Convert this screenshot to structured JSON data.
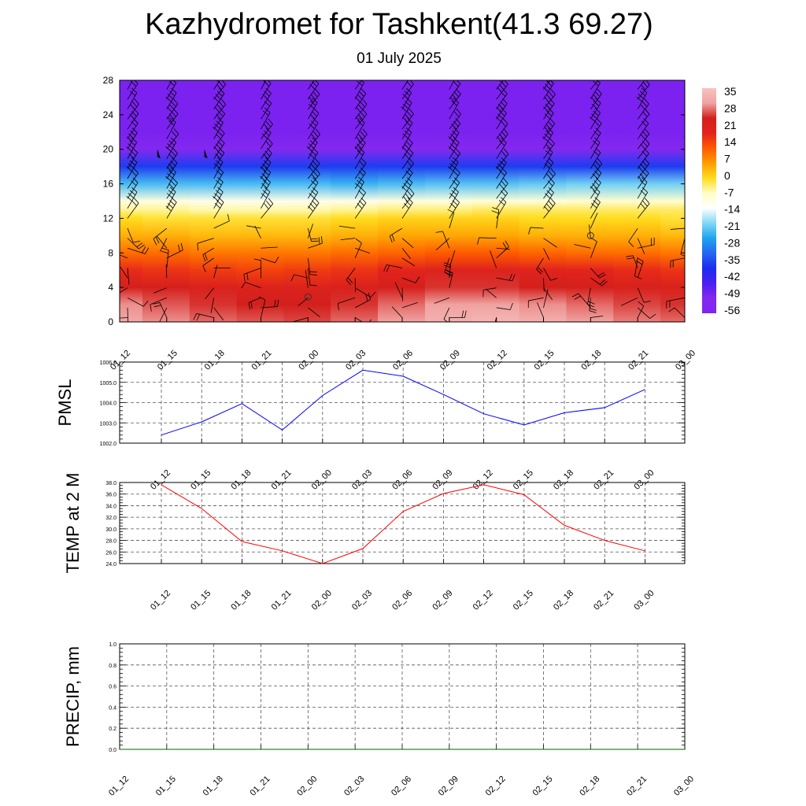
{
  "page": {
    "title": "Kazhydromet for Tashkent(41.3 69.27)",
    "subtitle": "01 July 2025"
  },
  "chart_data": [
    {
      "type": "heatmap",
      "ylim": [
        0,
        28
      ],
      "yticks": [
        0,
        4,
        8,
        12,
        16,
        20,
        24,
        28
      ],
      "categories": [
        "01_12",
        "01_15",
        "01_18",
        "01_21",
        "02_00",
        "02_03",
        "02_06",
        "02_09",
        "02_12",
        "02_15",
        "02_18",
        "02_21",
        "03_00"
      ],
      "colorbar": {
        "labels": [
          "35",
          "28",
          "21",
          "14",
          "7",
          "0",
          "-7",
          "-14",
          "-21",
          "-28",
          "-35",
          "-42",
          "-49",
          "-56"
        ],
        "colors": [
          "#f7b5b3",
          "#e3231d",
          "#ff5a00",
          "#ff9d00",
          "#ffdc1e",
          "#fffdc6",
          "#ffffff",
          "#7fd8f5",
          "#1fa3ef",
          "#2366f0",
          "#1c2cf0",
          "#4b1ff0",
          "#8328ef"
        ]
      },
      "profile_levels": [
        0,
        2,
        4,
        6,
        8,
        10,
        12,
        13,
        14,
        16,
        18,
        20,
        21,
        22,
        24,
        26,
        28
      ],
      "temperature": [
        [
          36,
          34,
          28,
          20,
          12,
          5,
          0,
          -5,
          -10,
          -25,
          -40,
          -56,
          -63,
          -70,
          -70,
          -70,
          -70
        ],
        [
          34,
          31,
          27,
          19,
          12,
          5,
          -1,
          -5,
          -10,
          -25,
          -40,
          -56,
          -63,
          -70,
          -70,
          -70,
          -70
        ],
        [
          32,
          29,
          25,
          18,
          11,
          4,
          -1,
          -6,
          -11,
          -25,
          -40,
          -56,
          -63,
          -70,
          -70,
          -70,
          -70
        ],
        [
          31,
          28,
          24,
          17,
          11,
          4,
          -1,
          -6,
          -11,
          -25,
          -40,
          -56,
          -63,
          -70,
          -70,
          -70,
          -70
        ],
        [
          30,
          28,
          24,
          18,
          11,
          4,
          -1,
          -6,
          -11,
          -25,
          -40,
          -56,
          -63,
          -70,
          -70,
          -70,
          -70
        ],
        [
          32,
          29,
          25,
          19,
          12,
          5,
          0,
          -5,
          -11,
          -26,
          -40,
          -56,
          -63,
          -70,
          -70,
          -70,
          -70
        ],
        [
          35,
          32,
          27,
          21,
          13,
          6,
          1,
          -4,
          -10,
          -25,
          -40,
          -56,
          -63,
          -70,
          -70,
          -70,
          -70
        ],
        [
          37,
          35,
          29,
          23,
          14,
          6,
          1,
          -4,
          -10,
          -24,
          -40,
          -56,
          -63,
          -70,
          -70,
          -70,
          -70
        ],
        [
          38,
          35,
          29,
          23,
          14,
          6,
          1,
          -3,
          -9,
          -24,
          -40,
          -56,
          -63,
          -70,
          -70,
          -70,
          -70
        ],
        [
          37,
          34,
          28,
          22,
          13,
          5,
          0,
          -3,
          -9,
          -23,
          -40,
          -56,
          -63,
          -70,
          -70,
          -70,
          -70
        ],
        [
          35,
          32,
          27,
          21,
          12,
          5,
          0,
          -3,
          -8,
          -22,
          -40,
          -56,
          -63,
          -70,
          -70,
          -70,
          -70
        ],
        [
          33,
          30,
          26,
          20,
          12,
          5,
          0,
          -3,
          -8,
          -22,
          -40,
          -56,
          -63,
          -70,
          -70,
          -70,
          -70
        ],
        [
          32,
          29,
          25,
          19,
          11,
          4,
          -1,
          -3,
          -8,
          -22,
          -40,
          -56,
          -63,
          -70,
          -70,
          -70,
          -70
        ]
      ]
    },
    {
      "type": "line",
      "ylabel": "PMSL",
      "ylim": [
        1002.0,
        1006.0
      ],
      "yticks": [
        "1002.0",
        "1003.0",
        "1004.0",
        "1005.0",
        "1006.0"
      ],
      "categories": [
        "01_12",
        "01_15",
        "01_18",
        "01_21",
        "02_00",
        "02_03",
        "02_06",
        "02_09",
        "02_12",
        "02_15",
        "02_18",
        "02_21",
        "03_00"
      ],
      "values": [
        1002.4,
        1003.05,
        1003.95,
        1002.65,
        1004.35,
        1005.6,
        1005.3,
        1004.4,
        1003.45,
        1002.9,
        1003.5,
        1003.75,
        1004.65
      ],
      "color": "#0000ff"
    },
    {
      "type": "line",
      "ylabel": "TEMP at 2 M",
      "ylim": [
        24.0,
        38.0
      ],
      "yticks": [
        "24.0",
        "26.0",
        "28.0",
        "30.0",
        "32.0",
        "34.0",
        "36.0",
        "38.0"
      ],
      "categories": [
        "01_12",
        "01_15",
        "01_18",
        "01_21",
        "02_00",
        "02_03",
        "02_06",
        "02_09",
        "02_12",
        "02_15",
        "02_18",
        "02_21",
        "03_00"
      ],
      "values": [
        37.6,
        33.5,
        27.8,
        26.2,
        24.0,
        26.6,
        33.0,
        36.1,
        37.6,
        35.9,
        30.6,
        28.0,
        26.2
      ],
      "color": "#ff0000"
    },
    {
      "type": "line",
      "ylabel": "PRECIP, mm",
      "ylim": [
        0.0,
        1.0
      ],
      "yticks": [
        "0.0",
        "0.2",
        "0.4",
        "0.6",
        "0.8",
        "1.0"
      ],
      "categories": [
        "01_12",
        "01_15",
        "01_18",
        "01_21",
        "02_00",
        "02_03",
        "02_06",
        "02_09",
        "02_12",
        "02_15",
        "02_18",
        "02_21",
        "03_00"
      ],
      "values": [
        0,
        0,
        0,
        0,
        0,
        0,
        0,
        0,
        0,
        0,
        0,
        0,
        0
      ],
      "color": "#006400"
    }
  ]
}
